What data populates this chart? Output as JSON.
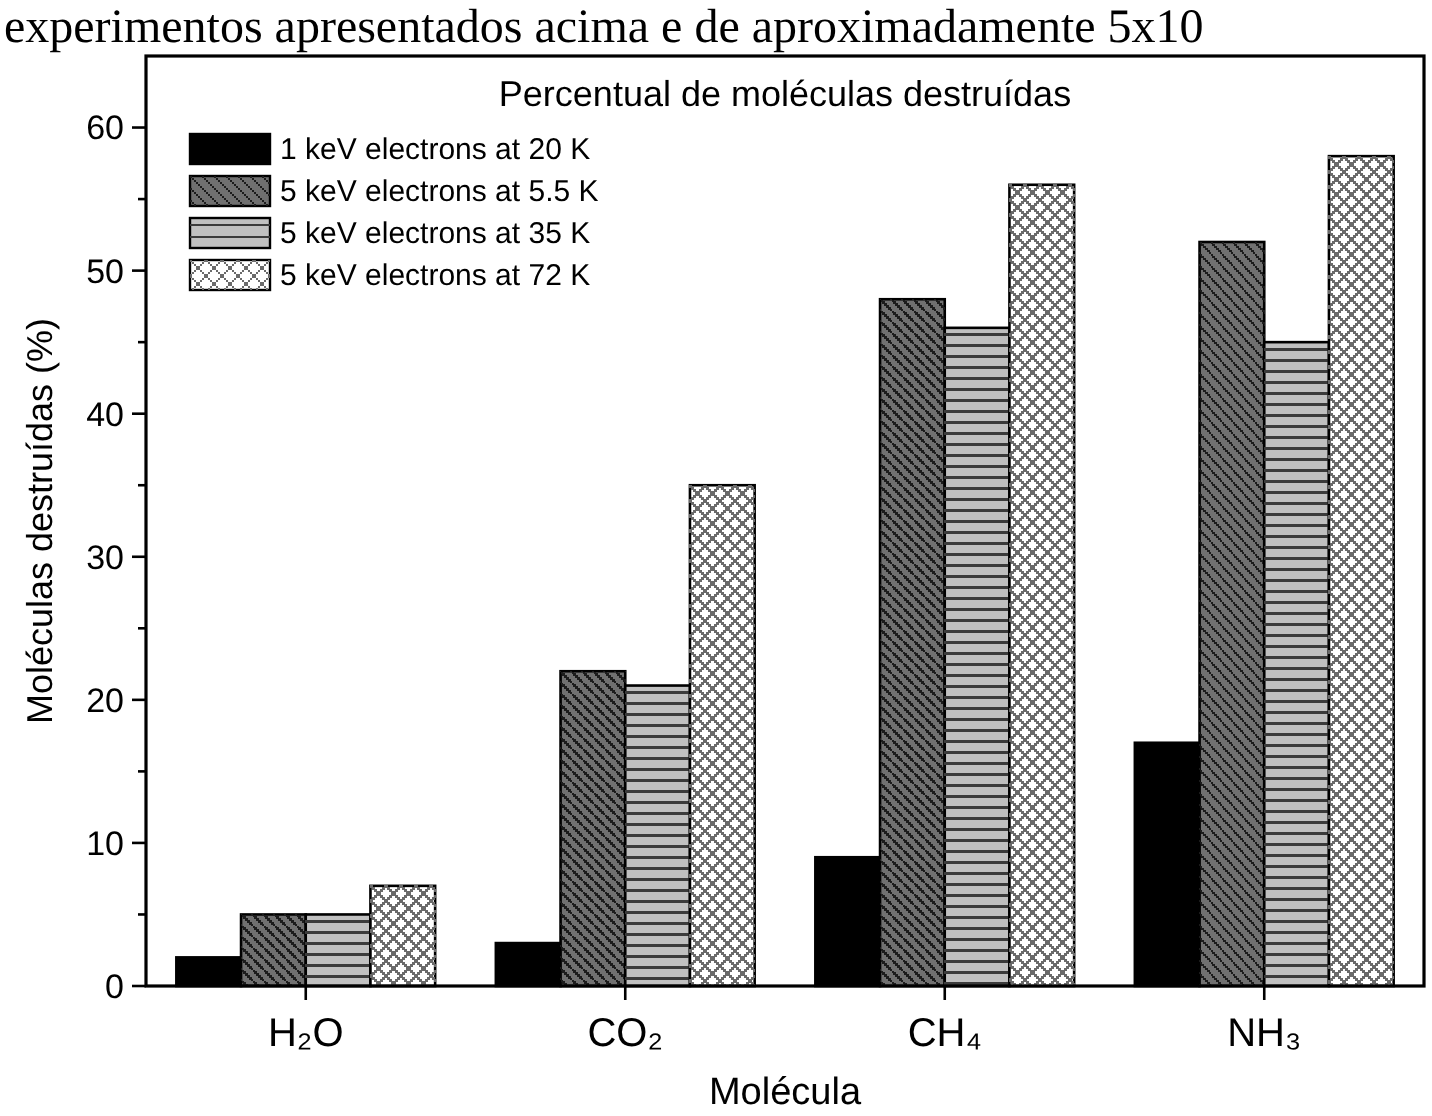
{
  "chart_data": {
    "type": "bar",
    "title": "Percentual de moléculas destruídas",
    "xlabel": "Molécula",
    "ylabel": "Moléculas destruídas (%)",
    "annotations": [
      "experimentos apresentados acima e de aproximadamente 5x10"
    ],
    "categories": [
      "H₂O",
      "CO₂",
      "CH₄",
      "NH₃"
    ],
    "series": [
      {
        "name": "1 keV electrons at 20 K",
        "color": "#000000",
        "values": [
          2,
          3,
          9,
          17
        ]
      },
      {
        "name": "5 keV electrons at 5.5 K",
        "color": "#707070",
        "values": [
          5,
          22,
          48,
          52
        ]
      },
      {
        "name": "5 keV electrons at 35 K",
        "color": "#c0c0c0",
        "values": [
          5,
          21,
          46,
          45
        ]
      },
      {
        "name": "5 keV electrons at 72 K",
        "color": "#ffffff",
        "values": [
          7,
          35,
          56,
          58
        ]
      }
    ],
    "ylim": [
      0,
      65
    ],
    "yticks": [
      0,
      {
        "value": 5,
        "label": null
      },
      10,
      {
        "value": 15,
        "label": null
      },
      20,
      {
        "value": 25,
        "label": null
      },
      30,
      {
        "value": 35,
        "label": null
      },
      40,
      {
        "value": 45,
        "label": null
      },
      50,
      {
        "value": 55,
        "label": null
      },
      60
    ],
    "legend": "top left"
  }
}
